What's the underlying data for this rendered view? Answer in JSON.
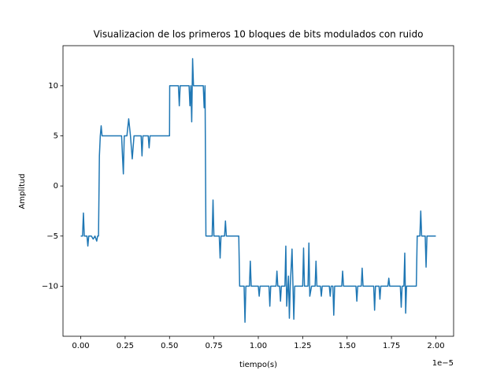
{
  "chart_data": {
    "type": "line",
    "title": "Visualizacion de los primeros 10 bloques de bits modulados con ruido",
    "x_label": "tiempo(s)",
    "y_label": "Amplitud",
    "x_offset_label": "1e−5",
    "color": "#1f77b4",
    "xlim": [
      -0.1,
      2.1
    ],
    "ylim": [
      -15,
      14
    ],
    "xticks": [
      {
        "value": 0,
        "label": "0.00"
      },
      {
        "value": 0.25,
        "label": "0.25"
      },
      {
        "value": 0.5,
        "label": "0.50"
      },
      {
        "value": 0.75,
        "label": "0.75"
      },
      {
        "value": 1,
        "label": "1.00"
      },
      {
        "value": 1.25,
        "label": "1.25"
      },
      {
        "value": 1.5,
        "label": "1.50"
      },
      {
        "value": 1.75,
        "label": "1.75"
      },
      {
        "value": 2,
        "label": "2.00"
      }
    ],
    "yticks": [
      {
        "value": -10,
        "label": "−10"
      },
      {
        "value": -5,
        "label": "−5"
      },
      0,
      5,
      10
    ],
    "x": [
      0,
      0.01,
      0.015,
      0.02,
      0.035,
      0.04,
      0.045,
      0.06,
      0.07,
      0.08,
      0.09,
      0.095,
      0.1,
      0.105,
      0.11,
      0.115,
      0.12,
      0.23,
      0.235,
      0.24,
      0.245,
      0.26,
      0.27,
      0.28,
      0.29,
      0.3,
      0.34,
      0.345,
      0.35,
      0.38,
      0.385,
      0.39,
      0.5,
      0.501,
      0.55,
      0.555,
      0.56,
      0.61,
      0.615,
      0.62,
      0.625,
      0.63,
      0.635,
      0.69,
      0.695,
      0.7,
      0.705,
      0.74,
      0.745,
      0.75,
      0.78,
      0.785,
      0.79,
      0.81,
      0.815,
      0.82,
      0.89,
      0.895,
      0.92,
      0.925,
      0.93,
      0.95,
      0.955,
      0.96,
      1,
      1.005,
      1.01,
      1.06,
      1.065,
      1.07,
      1.1,
      1.105,
      1.11,
      1.12,
      1.125,
      1.13,
      1.15,
      1.155,
      1.16,
      1.17,
      1.175,
      1.18,
      1.19,
      1.2,
      1.205,
      1.25,
      1.255,
      1.26,
      1.28,
      1.285,
      1.29,
      1.3,
      1.32,
      1.325,
      1.33,
      1.35,
      1.355,
      1.36,
      1.4,
      1.405,
      1.41,
      1.42,
      1.425,
      1.43,
      1.47,
      1.475,
      1.48,
      1.55,
      1.555,
      1.56,
      1.58,
      1.585,
      1.59,
      1.65,
      1.655,
      1.66,
      1.68,
      1.685,
      1.69,
      1.73,
      1.735,
      1.74,
      1.8,
      1.805,
      1.81,
      1.82,
      1.825,
      1.83,
      1.835,
      1.89,
      1.895,
      1.91,
      1.915,
      1.92,
      1.94,
      1.945,
      1.95,
      2
    ],
    "values": [
      -5,
      -5,
      -2.7,
      -5,
      -5,
      -6,
      -5,
      -5,
      -5.3,
      -5,
      -5.5,
      -5,
      -5,
      3,
      5,
      6,
      5,
      5,
      3,
      1.2,
      5,
      5,
      6.7,
      5,
      2.7,
      5,
      5,
      3,
      5,
      5,
      3.8,
      5,
      5,
      10,
      10,
      8,
      10,
      10,
      8,
      10,
      6.4,
      12.7,
      10,
      10,
      7.8,
      10,
      -5,
      -5,
      -1.4,
      -5,
      -5,
      -7.2,
      -5,
      -5,
      -3.5,
      -5,
      -5,
      -10,
      -10,
      -13.6,
      -10,
      -10,
      -7.5,
      -10,
      -10,
      -11,
      -10,
      -10,
      -12,
      -10,
      -10,
      -8.5,
      -10,
      -10,
      -11.5,
      -10,
      -10,
      -6,
      -12,
      -9,
      -13.2,
      -10,
      -6.3,
      -13.3,
      -10,
      -10,
      -6.2,
      -10,
      -10,
      -5.7,
      -11,
      -10,
      -10,
      -7.5,
      -10,
      -10,
      -11,
      -10,
      -10,
      -11,
      -10,
      -10,
      -12.9,
      -10,
      -10,
      -8.5,
      -10,
      -10,
      -11.5,
      -10,
      -10,
      -8.2,
      -10,
      -10,
      -12.4,
      -10,
      -10,
      -11.3,
      -10,
      -10,
      -9.2,
      -10,
      -10,
      -12.1,
      -10,
      -10,
      -6.7,
      -12.7,
      -10,
      -10,
      -5,
      -5,
      -2.5,
      -5,
      -5,
      -8.1,
      -5,
      -5
    ]
  }
}
